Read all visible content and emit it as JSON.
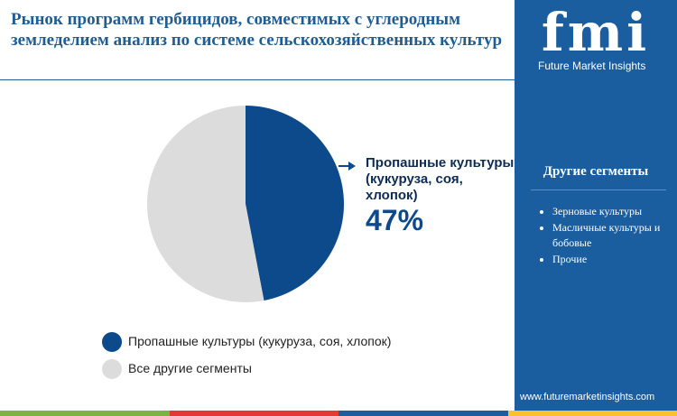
{
  "chart_data": {
    "type": "pie",
    "title": "Рынок программ гербицидов, совместимых с углеродным земледелием анализ по системе сельскохозяйственных культур",
    "categories": [
      "Пропашные культуры (кукуруза, соя, хлопок)",
      "Все другие сегменты"
    ],
    "values": [
      47,
      53
    ],
    "value_labels": [
      "47%",
      null
    ],
    "colors": [
      "#0d4a8c",
      "#dcdcdc"
    ]
  },
  "sidebar": {
    "logo": "fmi",
    "brand": "Future Market Insights",
    "heading": "Другие сегменты",
    "items": [
      "Зерновые культуры",
      "Масличные культуры и бобовые",
      "Прочие"
    ],
    "url": "www.futuremarketinsights.com"
  }
}
